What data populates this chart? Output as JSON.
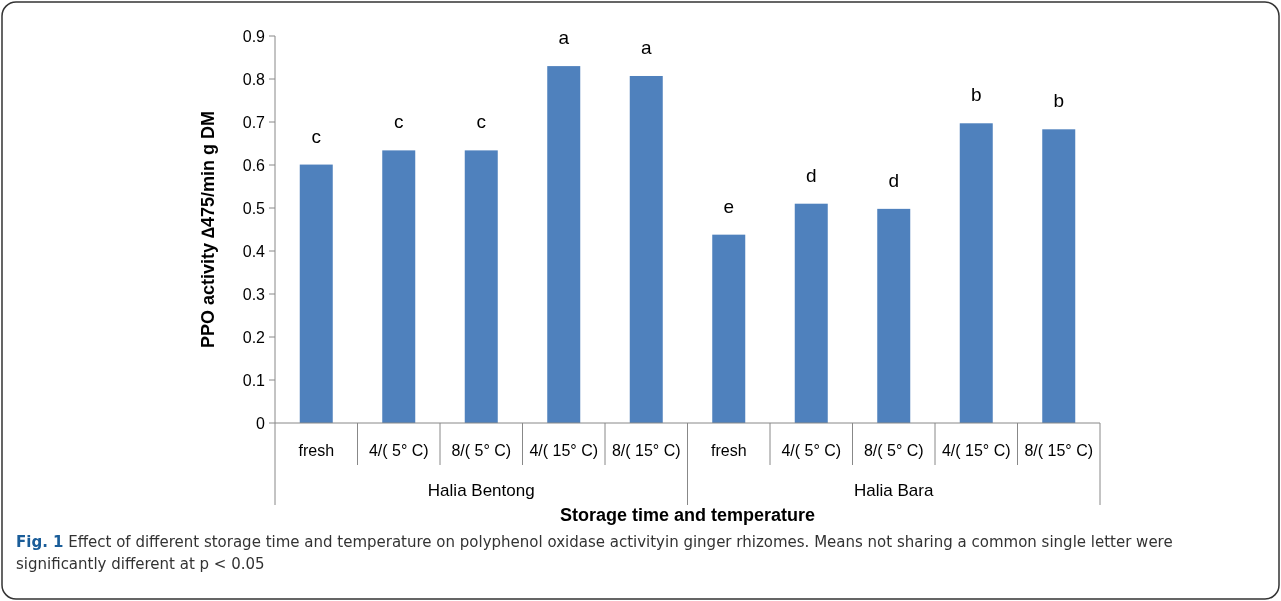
{
  "chart_data": {
    "type": "bar",
    "xlabel": "Storage time and temperature",
    "ylabel": "PPO activity ∆475/min g DM",
    "categories": [
      "fresh",
      "4/( 5° C)",
      "8/( 5° C)",
      "4/( 15° C)",
      "8/( 15° C)",
      "fresh",
      "4/( 5° C)",
      "8/( 5° C)",
      "4/( 15° C)",
      "8/( 15° C)"
    ],
    "values": [
      0.601,
      0.634,
      0.634,
      0.83,
      0.807,
      0.438,
      0.51,
      0.498,
      0.697,
      0.683
    ],
    "value_labels": [
      "c",
      "c",
      "c",
      "a",
      "a",
      "e",
      "d",
      "d",
      "b",
      "b"
    ],
    "color": "#4f81bd",
    "ylim": [
      0,
      0.9
    ],
    "yticks": [
      0,
      0.1,
      0.2,
      0.3,
      0.4,
      0.5,
      0.6,
      0.7,
      0.8,
      0.9
    ],
    "grid": false,
    "annotations": [
      "Halia Bentong",
      "Halia Bara",
      "Fig. 1 Effect of different storage time and temperature on polyphenol oxidase activityin ginger rhizomes. Means not sharing a common single letter were significantly different at p < 0.05"
    ]
  }
}
